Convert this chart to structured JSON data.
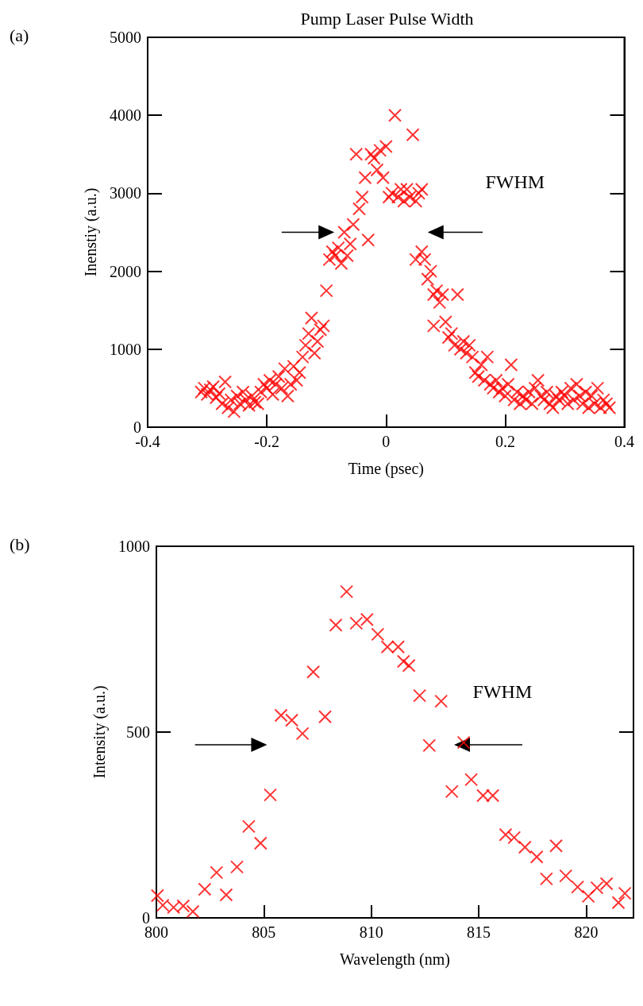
{
  "chart_data": [
    {
      "type": "scatter",
      "title": "Pump Laser Pulse Width",
      "xlabel": "Time (psec)",
      "ylabel": "Inenstiy (a.u.)",
      "color": "#ff0000",
      "marker": "cross",
      "xlim": [
        -0.4,
        0.4
      ],
      "ylim": [
        0,
        5000
      ],
      "xticks": [
        -0.4,
        -0.2,
        0,
        0.2,
        0.4
      ],
      "yticks": [
        0,
        1000,
        2000,
        3000,
        4000,
        5000
      ],
      "annotations": [
        "(a)",
        "FWHM"
      ],
      "x": [
        -0.31,
        -0.305,
        -0.3,
        -0.295,
        -0.29,
        -0.285,
        -0.28,
        -0.275,
        -0.27,
        -0.265,
        -0.26,
        -0.255,
        -0.25,
        -0.245,
        -0.24,
        -0.235,
        -0.23,
        -0.225,
        -0.22,
        -0.215,
        -0.21,
        -0.205,
        -0.2,
        -0.195,
        -0.19,
        -0.185,
        -0.18,
        -0.175,
        -0.17,
        -0.165,
        -0.16,
        -0.155,
        -0.15,
        -0.145,
        -0.14,
        -0.135,
        -0.13,
        -0.125,
        -0.12,
        -0.115,
        -0.11,
        -0.105,
        -0.1,
        -0.095,
        -0.09,
        -0.085,
        -0.08,
        -0.075,
        -0.07,
        -0.065,
        -0.06,
        -0.055,
        -0.05,
        -0.045,
        -0.04,
        -0.035,
        -0.03,
        -0.025,
        -0.02,
        -0.015,
        -0.01,
        -0.005,
        0,
        0.005,
        0.01,
        0.015,
        0.02,
        0.025,
        0.03,
        0.035,
        0.04,
        0.045,
        0.05,
        0.055,
        0.06,
        0.05,
        0.06,
        0.065,
        0.07,
        0.075,
        0.08,
        0.085,
        0.09,
        0.095,
        0.08,
        0.1,
        0.105,
        0.11,
        0.115,
        0.12,
        0.125,
        0.13,
        0.135,
        0.14,
        0.145,
        0.15,
        0.155,
        0.16,
        0.165,
        0.17,
        0.175,
        0.18,
        0.185,
        0.19,
        0.195,
        0.2,
        0.205,
        0.21,
        0.215,
        0.22,
        0.225,
        0.23,
        0.235,
        0.24,
        0.245,
        0.25,
        0.255,
        0.26,
        0.265,
        0.27,
        0.275,
        0.28,
        0.285,
        0.29,
        0.295,
        0.3,
        0.305,
        0.31,
        0.315,
        0.32,
        0.325,
        0.33,
        0.335,
        0.34,
        0.345,
        0.35,
        0.355,
        0.36,
        0.365,
        0.37,
        0.375
      ],
      "values": [
        450,
        500,
        420,
        480,
        520,
        380,
        430,
        300,
        580,
        250,
        350,
        200,
        400,
        300,
        450,
        350,
        280,
        400,
        320,
        300,
        450,
        550,
        500,
        600,
        420,
        550,
        650,
        500,
        750,
        400,
        550,
        780,
        600,
        700,
        900,
        1050,
        1200,
        1400,
        950,
        1100,
        1250,
        1300,
        1750,
        2150,
        2250,
        2200,
        2300,
        2100,
        2500,
        2200,
        2350,
        2600,
        3500,
        2800,
        2950,
        3200,
        2400,
        3500,
        3450,
        3300,
        3550,
        3200,
        3600,
        2950,
        3000,
        4000,
        2950,
        3050,
        2900,
        3050,
        2950,
        3750,
        2900,
        3000,
        3050,
        2150,
        2250,
        2150,
        1900,
        2000,
        1700,
        1750,
        1600,
        1700,
        1300,
        1350,
        1150,
        1200,
        1050,
        1700,
        1000,
        1100,
        950,
        1050,
        900,
        700,
        650,
        800,
        600,
        900,
        550,
        500,
        600,
        450,
        500,
        400,
        550,
        800,
        350,
        450,
        300,
        400,
        350,
        450,
        300,
        500,
        600,
        400,
        350,
        450,
        300,
        250,
        400,
        350,
        450,
        400,
        300,
        500,
        350,
        550,
        400,
        300,
        450,
        250,
        400,
        300,
        500,
        250,
        350,
        300,
        250
      ]
    },
    {
      "type": "scatter",
      "xlabel": "Wavelength (nm)",
      "ylabel": "Intensity (a.u.)",
      "color": "#ff0000",
      "marker": "cross",
      "xlim": [
        800,
        822.2
      ],
      "ylim": [
        0,
        1000
      ],
      "xticks": [
        800,
        805,
        810,
        815,
        820
      ],
      "yticks": [
        0,
        500,
        1000
      ],
      "annotations": [
        "(b)",
        "FWHM"
      ],
      "x": [
        800.05,
        800.3,
        800.8,
        801.25,
        801.7,
        802.25,
        802.8,
        803.25,
        803.75,
        804.3,
        804.85,
        805.3,
        805.8,
        806.3,
        806.8,
        807.3,
        807.85,
        808.35,
        808.85,
        809.3,
        809.8,
        810.3,
        810.75,
        811.25,
        811.5,
        811.75,
        812.25,
        812.7,
        813.25,
        813.75,
        814.3,
        814.65,
        815.2,
        815.65,
        816.25,
        816.65,
        817.15,
        817.7,
        818.15,
        818.6,
        819.05,
        819.6,
        820.1,
        820.5,
        820.95,
        821.5,
        821.8
      ],
      "values": [
        60,
        34,
        28,
        32,
        17,
        77,
        122,
        62,
        137,
        246,
        201,
        331,
        545,
        532,
        496,
        662,
        541,
        788,
        878,
        793,
        803,
        763,
        729,
        729,
        690,
        679,
        598,
        464,
        583,
        340,
        472,
        372,
        329,
        329,
        224,
        216,
        190,
        164,
        105,
        194,
        113,
        83,
        58,
        81,
        92,
        41,
        66
      ]
    }
  ]
}
